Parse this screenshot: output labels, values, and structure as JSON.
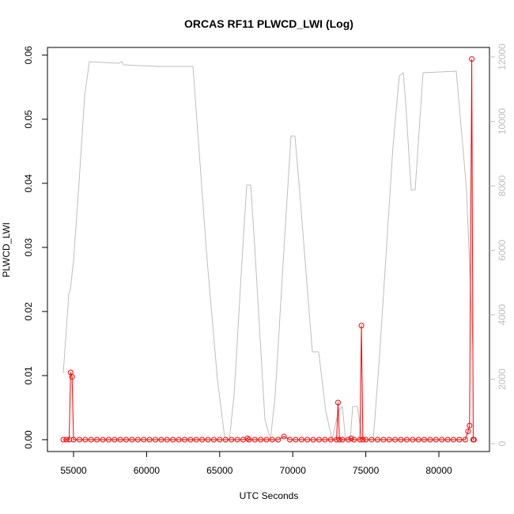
{
  "chart_data": {
    "type": "line",
    "title": "ORCAS RF11 PLWCD_LWI (Log)",
    "x_label": "UTC Seconds",
    "y_label": "PLWCD_LWI",
    "xlim": [
      53214,
      83463
    ],
    "ylim": [
      -0.00185,
      0.0612
    ],
    "y2lim": [
      -245,
      12294
    ],
    "xticks": [
      55000,
      60000,
      65000,
      70000,
      75000,
      80000
    ],
    "yticks": [
      {
        "value": 0,
        "label": "0.00"
      },
      0.01,
      0.02,
      0.03,
      0.04,
      0.05,
      0.06
    ],
    "y2ticks": [
      0,
      2000,
      4000,
      6000,
      8000,
      10000,
      12000
    ],
    "series": [
      {
        "axis": "y2",
        "color": "#bebebe",
        "markers": false,
        "x": [
          54297,
          54675,
          54784,
          55000,
          55379,
          55758,
          56082,
          58084,
          58300,
          58409,
          60790,
          63170,
          64145,
          64848,
          65335,
          65660,
          65985,
          66526,
          66851,
          67121,
          67392,
          68095,
          68474,
          68799,
          69447,
          69880,
          70151,
          70421,
          71341,
          71774,
          72261,
          72694,
          73127,
          73397,
          73614,
          73938,
          74100,
          74425,
          74750,
          75508,
          75941,
          76860,
          77293,
          77564,
          77726,
          78105,
          78376,
          78917,
          81190,
          81893,
          82326
        ],
        "values": [
          2184,
          4638,
          4810,
          5669,
          8123,
          10773,
          11853,
          11804,
          11853,
          11755,
          11706,
          11706,
          5669,
          1988,
          221,
          123,
          1497,
          5669,
          8025,
          8025,
          6160,
          761,
          123,
          1497,
          6405,
          9546,
          9546,
          8123,
          2847,
          2847,
          1006,
          123,
          1006,
          1153,
          123,
          123,
          1153,
          1153,
          123,
          123,
          2724,
          9227,
          11411,
          11509,
          10577,
          7877,
          7877,
          11509,
          11558,
          7877,
          2969
        ]
      },
      {
        "axis": "y",
        "color": "#ff0000",
        "markers": true,
        "x": [
          54300,
          54500,
          54700,
          54800,
          54900,
          55000,
          55400,
          55800,
          56200,
          56600,
          57000,
          57400,
          57800,
          58200,
          58600,
          59000,
          59400,
          59800,
          60200,
          60600,
          61000,
          61400,
          61800,
          62200,
          62600,
          63000,
          63400,
          63800,
          64200,
          64600,
          65000,
          65400,
          65800,
          66200,
          66600,
          66900,
          67000,
          67400,
          67800,
          68200,
          68600,
          69000,
          69400,
          69800,
          70200,
          70600,
          71000,
          71400,
          71800,
          72200,
          72600,
          73000,
          73100,
          73200,
          73400,
          73800,
          74000,
          74200,
          74600,
          74700,
          74800,
          75000,
          75400,
          75800,
          76200,
          76600,
          77000,
          77400,
          77800,
          78200,
          78600,
          79000,
          79400,
          79800,
          80200,
          80600,
          81000,
          81400,
          81800,
          82000,
          82100,
          82250,
          82350,
          82400
        ],
        "values": [
          0,
          0,
          0,
          0.0105,
          0.0098,
          0,
          0,
          0,
          0,
          0,
          0,
          0,
          0,
          0,
          0,
          0,
          0,
          0,
          0,
          0,
          0,
          0,
          0,
          0,
          0,
          0,
          0,
          0,
          0,
          0,
          0,
          0,
          0,
          0,
          0,
          0.0002,
          0,
          0,
          0,
          0,
          0,
          0,
          0.0005,
          0,
          0,
          0,
          0,
          0,
          0,
          0,
          0,
          0,
          0.0058,
          0,
          0,
          0,
          0.0002,
          0,
          0,
          0.0178,
          0,
          0,
          0,
          0,
          0,
          0,
          0,
          0,
          0,
          0,
          0,
          0,
          0,
          0,
          0,
          0,
          0,
          0,
          0,
          0.0013,
          0.0022,
          0.0594,
          0,
          0
        ]
      }
    ]
  }
}
